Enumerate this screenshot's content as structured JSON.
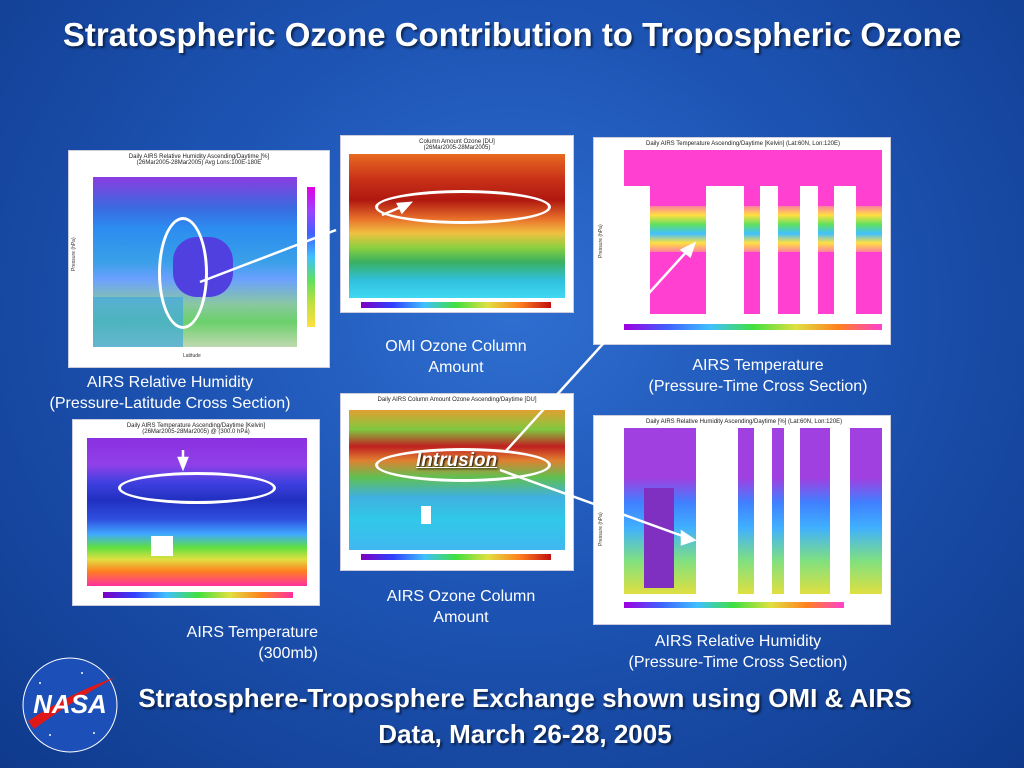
{
  "title": "Stratospheric Ozone Contribution to Tropospheric Ozone",
  "footer": "Stratosphere-Troposphere Exchange shown using OMI & AIRS Data, March 26-28, 2005",
  "intrusion_label": "Intrusion",
  "logo_text": "NASA",
  "panels": {
    "rh_lat": {
      "title": "Daily AIRS Relative Humidity Ascending/Daytime [%]",
      "subtitle": "(26Mar2005-28Mar2005)  Avg Lons:100E-180E",
      "ylabel": "Pressure (hPa)",
      "xlabel": "Latitude",
      "caption_line1": "AIRS Relative Humidity",
      "caption_line2": "(Pressure-Latitude Cross Section)"
    },
    "omi": {
      "title": "Column Amount Ozone [DU]",
      "subtitle": "(26Mar2005-28Mar2005)",
      "caption_line1": "OMI Ozone Column",
      "caption_line2": "Amount"
    },
    "temp_time": {
      "title": "Daily AIRS Temperature Ascending/Daytime [Kelvin] (Lat:60N, Lon:120E)",
      "ylabel": "Pressure (hPa)",
      "caption_line1": "AIRS Temperature",
      "caption_line2": "(Pressure-Time Cross Section)"
    },
    "temp_300": {
      "title": "Daily AIRS Temperature Ascending/Daytime [Kelvin]",
      "subtitle": "(26Mar2005-28Mar2005) @ (300.0 hPa)",
      "caption_line1": "AIRS Temperature",
      "caption_line2": "(300mb)"
    },
    "airs_ozone": {
      "title": "Daily AIRS Column Amount Ozone Ascending/Daytime [DU]",
      "caption_line1": "AIRS Ozone Column",
      "caption_line2": "Amount"
    },
    "rh_time": {
      "title": "Daily AIRS Relative Humidity Ascending/Daytime [%] (Lat:60N, Lon:120E)",
      "ylabel": "Pressure (hPa)",
      "caption_line1": "AIRS Relative Humidity",
      "caption_line2": "(Pressure-Time Cross Section)"
    }
  }
}
